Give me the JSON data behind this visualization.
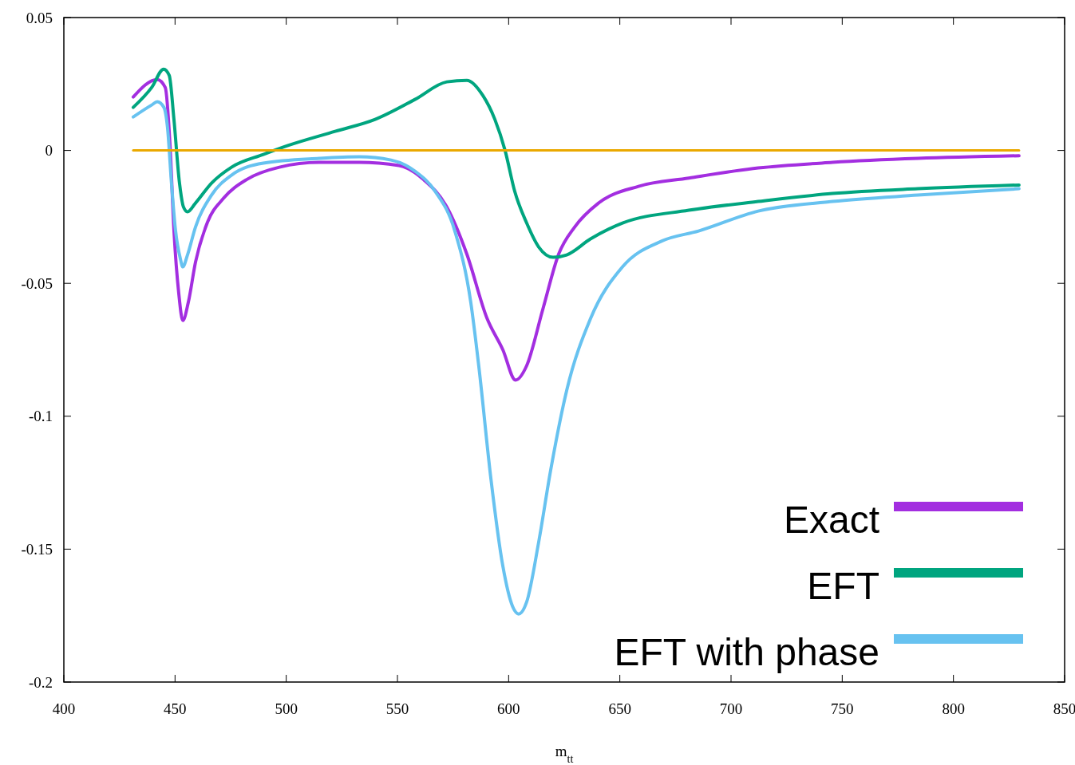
{
  "chart_data": {
    "type": "line",
    "xlabel": "m$_{tt}$",
    "xlim": [
      400,
      850
    ],
    "xticks": [
      400,
      450,
      500,
      550,
      600,
      650,
      700,
      750,
      800,
      850
    ],
    "ylim": [
      -0.2,
      0.05
    ],
    "yticks": [
      0.05,
      0,
      -0.05,
      -0.1,
      -0.15,
      -0.2
    ],
    "grid": false,
    "legend": "bottom right",
    "marker": "none",
    "line_style": "solid",
    "series": [
      {
        "name": "Exact",
        "color": "#a32ee0",
        "x": [
          431.2,
          442,
          445.6,
          447.7,
          449.5,
          451.7,
          453.5,
          456,
          459.2,
          464.6,
          471.8,
          482.5,
          496.9,
          514.8,
          532.8,
          550.7,
          561.5,
          572.2,
          581.2,
          590.2,
          597.4,
          603.1,
          608.1,
          615.3,
          622.5,
          629.7,
          640.4,
          658.4,
          681,
          712.2,
          745.6,
          784,
          829.5
        ],
        "values": [
          0.0201,
          0.0267,
          0.0237,
          0.0027,
          -0.03,
          -0.054,
          -0.064,
          -0.057,
          -0.042,
          -0.027,
          -0.018,
          -0.0108,
          -0.0063,
          -0.0045,
          -0.0045,
          -0.0057,
          -0.0108,
          -0.0213,
          -0.039,
          -0.063,
          -0.075,
          -0.0864,
          -0.081,
          -0.06,
          -0.039,
          -0.0288,
          -0.0198,
          -0.0135,
          -0.0104,
          -0.0066,
          -0.0045,
          -0.003,
          -0.002
        ]
      },
      {
        "name": "EFT",
        "color": "#00a57f",
        "x": [
          431.2,
          439.5,
          444.9,
          447.4,
          449.5,
          452,
          453.8,
          455.6,
          459.2,
          466.4,
          475.4,
          489.7,
          500.5,
          522,
          540,
          557.9,
          572.2,
          581.2,
          588.4,
          593.8,
          598.4,
          602.7,
          608.1,
          613.5,
          620,
          626.1,
          636.8,
          651.2,
          681,
          712.2,
          745.6,
          784,
          829.5
        ],
        "values": [
          0.0162,
          0.0237,
          0.0306,
          0.0282,
          0.0117,
          -0.0123,
          -0.0213,
          -0.0231,
          -0.0198,
          -0.0123,
          -0.0063,
          -0.0015,
          0.0018,
          0.0072,
          0.0117,
          0.0192,
          0.0258,
          0.0264,
          0.0207,
          0.0117,
          0,
          -0.0153,
          -0.0273,
          -0.0363,
          -0.0402,
          -0.0393,
          -0.0333,
          -0.0273,
          -0.0225,
          -0.0192,
          -0.0162,
          -0.0144,
          -0.013
        ]
      },
      {
        "name": "EFT with phase",
        "color": "#67c2f0",
        "x": [
          431.2,
          439.5,
          442,
          445,
          446.6,
          448.4,
          450.2,
          452.4,
          453.5,
          455.6,
          459.2,
          466.4,
          475.4,
          489.7,
          514.8,
          532.8,
          547.1,
          557.9,
          566.9,
          575.8,
          583,
          586.6,
          592,
          597.4,
          601.7,
          604.5,
          608.1,
          613.5,
          618.9,
          626.1,
          636.8,
          651.2,
          669.1,
          685.4,
          712.2,
          745.6,
          784,
          829.5
        ],
        "values": [
          0.0126,
          0.0171,
          0.0183,
          0.0162,
          0.0087,
          -0.0123,
          -0.03,
          -0.0408,
          -0.0438,
          -0.0393,
          -0.0288,
          -0.0168,
          -0.0093,
          -0.0048,
          -0.003,
          -0.0024,
          -0.0036,
          -0.0078,
          -0.0153,
          -0.0303,
          -0.0573,
          -0.0813,
          -0.1233,
          -0.1564,
          -0.1714,
          -0.1744,
          -0.1699,
          -0.1474,
          -0.1203,
          -0.0903,
          -0.0633,
          -0.0438,
          -0.034,
          -0.0303,
          -0.0228,
          -0.0192,
          -0.0168,
          -0.0144
        ]
      },
      {
        "color": "#eaa800",
        "x": [
          431.2,
          829.5
        ],
        "values": [
          0,
          0
        ]
      }
    ]
  }
}
